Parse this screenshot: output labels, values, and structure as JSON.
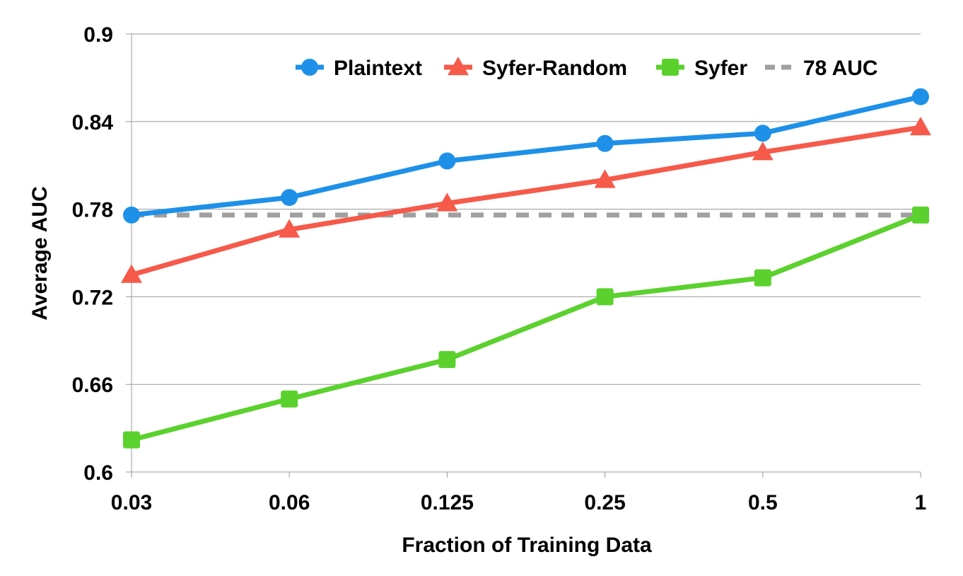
{
  "chart_data": {
    "type": "line",
    "categories": [
      "0.03",
      "0.06",
      "0.125",
      "0.25",
      "0.5",
      "1"
    ],
    "xlabel": "Fraction of Training Data",
    "ylabel": "Average AUC",
    "ylim": [
      0.6,
      0.9
    ],
    "yticks": [
      "0.6",
      "0.66",
      "0.72",
      "0.78",
      "0.84",
      "0.9"
    ],
    "grid": true,
    "legend_position": "top-right",
    "series": [
      {
        "name": "Plaintext",
        "values": [
          0.776,
          0.788,
          0.813,
          0.825,
          0.832,
          0.857
        ],
        "color": "#1E90E8",
        "marker": "circle",
        "style": "solid"
      },
      {
        "name": "Syfer-Random",
        "values": [
          0.735,
          0.766,
          0.784,
          0.8,
          0.819,
          0.836
        ],
        "color": "#F55A4A",
        "marker": "triangle",
        "style": "solid"
      },
      {
        "name": "Syfer",
        "values": [
          0.622,
          0.65,
          0.677,
          0.72,
          0.733,
          0.776
        ],
        "color": "#5BD12E",
        "marker": "square",
        "style": "solid"
      },
      {
        "name": "78 AUC",
        "values": [
          0.776,
          0.776,
          0.776,
          0.776,
          0.776,
          0.776
        ],
        "color": "#A0A0A0",
        "marker": "none",
        "style": "dashed"
      }
    ]
  }
}
